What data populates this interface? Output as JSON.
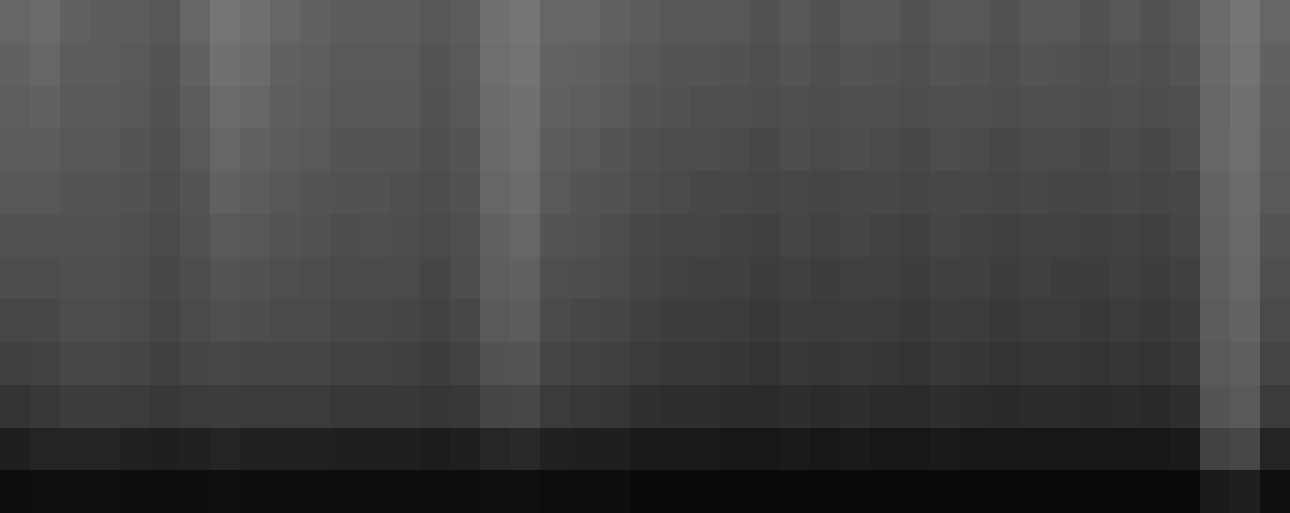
{
  "chart_data": {
    "type": "heatmap",
    "tick_labels": false,
    "color": "#ffffff",
    "zlim": [
      0,
      100
    ],
    "cells": [
      [
        40,
        42,
        38,
        36,
        36,
        34,
        40,
        46,
        44,
        40,
        38,
        36,
        36,
        36,
        34,
        36,
        44,
        46,
        40,
        40,
        38,
        36,
        34,
        34,
        34,
        32,
        34,
        32,
        34,
        34,
        32,
        34,
        34,
        32,
        34,
        34,
        32,
        34,
        32,
        34,
        42,
        46,
        40
      ],
      [
        38,
        40,
        36,
        36,
        35,
        33,
        38,
        44,
        42,
        38,
        37,
        35,
        35,
        35,
        33,
        35,
        43,
        45,
        39,
        38,
        36,
        34,
        33,
        33,
        32,
        31,
        33,
        31,
        33,
        32,
        31,
        33,
        32,
        31,
        33,
        32,
        31,
        32,
        31,
        33,
        41,
        45,
        38
      ],
      [
        37,
        38,
        35,
        35,
        34,
        32,
        36,
        42,
        40,
        37,
        36,
        34,
        34,
        34,
        32,
        34,
        42,
        44,
        38,
        37,
        35,
        33,
        32,
        31,
        31,
        30,
        31,
        30,
        31,
        31,
        30,
        31,
        31,
        30,
        31,
        31,
        30,
        31,
        30,
        31,
        40,
        44,
        37
      ],
      [
        36,
        36,
        34,
        34,
        33,
        31,
        35,
        40,
        38,
        36,
        35,
        33,
        33,
        33,
        31,
        33,
        41,
        43,
        36,
        35,
        33,
        31,
        30,
        30,
        29,
        28,
        30,
        29,
        30,
        29,
        28,
        30,
        29,
        28,
        29,
        29,
        28,
        29,
        28,
        30,
        40,
        43,
        36
      ],
      [
        34,
        34,
        33,
        33,
        32,
        30,
        33,
        38,
        36,
        34,
        33,
        32,
        32,
        31,
        30,
        32,
        40,
        42,
        35,
        33,
        32,
        30,
        29,
        28,
        28,
        27,
        28,
        27,
        28,
        28,
        27,
        28,
        28,
        27,
        28,
        27,
        27,
        28,
        27,
        28,
        39,
        42,
        35
      ],
      [
        32,
        32,
        32,
        32,
        31,
        29,
        32,
        35,
        34,
        33,
        32,
        30,
        31,
        30,
        29,
        31,
        38,
        40,
        33,
        32,
        30,
        28,
        27,
        27,
        26,
        25,
        27,
        26,
        27,
        26,
        25,
        27,
        26,
        25,
        26,
        26,
        25,
        26,
        25,
        27,
        38,
        41,
        33
      ],
      [
        30,
        30,
        31,
        31,
        30,
        28,
        30,
        33,
        32,
        31,
        30,
        29,
        29,
        29,
        27,
        30,
        37,
        38,
        31,
        30,
        29,
        27,
        26,
        25,
        25,
        24,
        25,
        24,
        25,
        25,
        24,
        25,
        25,
        24,
        25,
        24,
        24,
        25,
        24,
        25,
        37,
        40,
        31
      ],
      [
        28,
        28,
        30,
        30,
        29,
        27,
        29,
        31,
        30,
        29,
        29,
        28,
        28,
        27,
        26,
        28,
        35,
        36,
        29,
        28,
        27,
        25,
        24,
        24,
        23,
        22,
        24,
        23,
        24,
        23,
        22,
        24,
        23,
        22,
        23,
        23,
        22,
        23,
        22,
        24,
        36,
        39,
        29
      ],
      [
        25,
        26,
        28,
        28,
        27,
        25,
        27,
        28,
        27,
        27,
        27,
        26,
        26,
        25,
        24,
        26,
        32,
        33,
        27,
        26,
        25,
        23,
        22,
        22,
        21,
        20,
        22,
        21,
        22,
        21,
        20,
        22,
        21,
        20,
        21,
        21,
        20,
        21,
        20,
        22,
        35,
        37,
        27
      ],
      [
        20,
        22,
        24,
        24,
        23,
        22,
        23,
        24,
        23,
        23,
        23,
        22,
        22,
        22,
        21,
        22,
        27,
        28,
        23,
        22,
        21,
        19,
        18,
        18,
        17,
        17,
        18,
        17,
        18,
        17,
        17,
        18,
        17,
        16,
        17,
        17,
        16,
        17,
        16,
        18,
        33,
        35,
        23
      ],
      [
        12,
        14,
        14,
        14,
        13,
        12,
        13,
        14,
        13,
        13,
        13,
        12,
        12,
        12,
        11,
        12,
        15,
        16,
        13,
        12,
        12,
        10,
        10,
        10,
        9,
        9,
        10,
        9,
        10,
        9,
        9,
        10,
        9,
        9,
        9,
        9,
        9,
        9,
        9,
        10,
        26,
        28,
        14
      ],
      [
        5,
        6,
        6,
        6,
        5,
        5,
        5,
        6,
        5,
        5,
        5,
        5,
        5,
        5,
        5,
        5,
        6,
        6,
        5,
        5,
        5,
        4,
        4,
        4,
        4,
        4,
        4,
        4,
        4,
        4,
        4,
        4,
        4,
        4,
        4,
        4,
        4,
        4,
        4,
        4,
        10,
        12,
        6
      ]
    ]
  }
}
